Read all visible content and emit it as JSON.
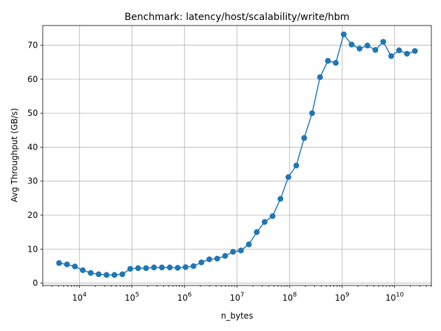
{
  "chart_data": {
    "type": "line",
    "title": "Benchmark: latency/host/scalability/write/hbm",
    "xlabel": "n_bytes",
    "ylabel": "Avg Throughput (GB/s)",
    "xscale": "log",
    "xlim": [
      2000,
      50000000000
    ],
    "ylim": [
      -0.7,
      75.8
    ],
    "xticks": [
      {
        "value": 10000,
        "base": "10",
        "exp": "4"
      },
      {
        "value": 100000,
        "base": "10",
        "exp": "5"
      },
      {
        "value": 1000000,
        "base": "10",
        "exp": "6"
      },
      {
        "value": 10000000,
        "base": "10",
        "exp": "7"
      },
      {
        "value": 100000000,
        "base": "10",
        "exp": "8"
      },
      {
        "value": 1000000000,
        "base": "10",
        "exp": "9"
      },
      {
        "value": 10000000000,
        "base": "10",
        "exp": "10"
      }
    ],
    "yticks": [
      0,
      10,
      20,
      30,
      40,
      50,
      60,
      70
    ],
    "grid": true,
    "color": "#1f77b4",
    "series": [
      {
        "x": [
          4096,
          5793,
          8192,
          11585,
          16384,
          23170,
          32768,
          46341,
          65536,
          92682,
          131072,
          185364,
          262144,
          370728,
          524288,
          741455,
          1048576,
          1482910,
          2097152,
          2965821,
          4194304,
          5931642,
          8388608,
          11863283,
          16777216,
          23726566,
          33554432,
          47453133,
          67108864,
          94906265,
          134217728,
          189812531,
          268435456,
          379625062,
          536870912,
          759250125,
          1073741824,
          1518500250,
          2147483648,
          3037000500,
          4294967296,
          6074001000,
          8589934592,
          12148002000,
          17179869184,
          24296004000
        ],
        "y": [
          5.9,
          5.5,
          4.9,
          3.8,
          3.0,
          2.6,
          2.4,
          2.4,
          2.6,
          4.2,
          4.4,
          4.4,
          4.6,
          4.6,
          4.6,
          4.5,
          4.7,
          5.0,
          6.1,
          7.0,
          7.2,
          8.0,
          9.2,
          9.6,
          11.4,
          15.0,
          18.0,
          19.7,
          24.8,
          31.2,
          34.6,
          42.7,
          50.0,
          60.6,
          65.4,
          64.8,
          73.2,
          70.2,
          69.0,
          69.9,
          68.6,
          71.0,
          66.8,
          68.5,
          67.5,
          68.3
        ]
      }
    ]
  }
}
